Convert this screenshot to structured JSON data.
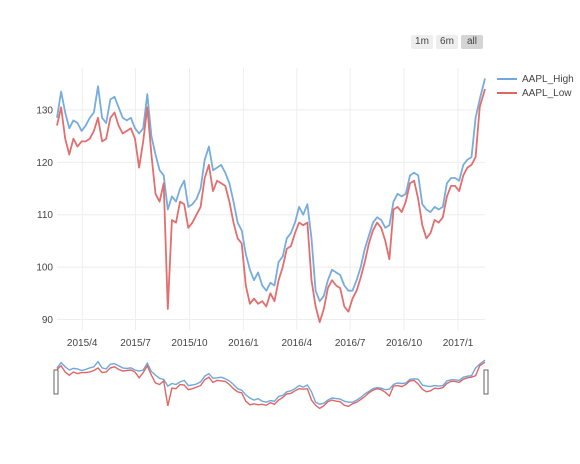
{
  "range_selector": {
    "buttons": [
      {
        "label": "1m"
      },
      {
        "label": "6m"
      },
      {
        "label": "all",
        "active": true
      }
    ]
  },
  "chart_data": {
    "type": "line",
    "title": "",
    "xlabel": "",
    "ylabel": "",
    "x_tick_labels": [
      "2015/4",
      "2015/7",
      "2015/10",
      "2016/1",
      "2016/4",
      "2016/7",
      "2016/10",
      "2017/1"
    ],
    "x_range": [
      "2015-02-17",
      "2017-02-16"
    ],
    "y_ticks": [
      90,
      100,
      110,
      120,
      130
    ],
    "ylim": [
      88,
      138
    ],
    "grid": true,
    "legend_position": "top-right",
    "rangeslider": true,
    "series": [
      {
        "name": "AAPL_High",
        "color": "#6fa8dc",
        "points": [
          [
            "2015-02-17",
            128.5
          ],
          [
            "2015-02-24",
            133.5
          ],
          [
            "2015-03-03",
            129.5
          ],
          [
            "2015-03-10",
            126.5
          ],
          [
            "2015-03-17",
            128.0
          ],
          [
            "2015-03-24",
            127.5
          ],
          [
            "2015-03-31",
            126.0
          ],
          [
            "2015-04-07",
            127.0
          ],
          [
            "2015-04-14",
            128.5
          ],
          [
            "2015-04-21",
            129.5
          ],
          [
            "2015-04-28",
            134.5
          ],
          [
            "2015-05-05",
            128.5
          ],
          [
            "2015-05-12",
            127.5
          ],
          [
            "2015-05-19",
            132.0
          ],
          [
            "2015-05-26",
            132.5
          ],
          [
            "2015-06-02",
            130.5
          ],
          [
            "2015-06-09",
            128.5
          ],
          [
            "2015-06-16",
            128.0
          ],
          [
            "2015-06-23",
            128.5
          ],
          [
            "2015-06-30",
            126.5
          ],
          [
            "2015-07-07",
            125.5
          ],
          [
            "2015-07-14",
            126.5
          ],
          [
            "2015-07-21",
            133.0
          ],
          [
            "2015-07-28",
            125.0
          ],
          [
            "2015-08-04",
            121.5
          ],
          [
            "2015-08-11",
            118.5
          ],
          [
            "2015-08-18",
            117.5
          ],
          [
            "2015-08-25",
            111.0
          ],
          [
            "2015-09-01",
            113.5
          ],
          [
            "2015-09-08",
            112.5
          ],
          [
            "2015-09-15",
            115.0
          ],
          [
            "2015-09-22",
            116.5
          ],
          [
            "2015-09-29",
            111.5
          ],
          [
            "2015-10-06",
            112.0
          ],
          [
            "2015-10-13",
            113.0
          ],
          [
            "2015-10-20",
            115.0
          ],
          [
            "2015-10-27",
            120.5
          ],
          [
            "2015-11-03",
            123.0
          ],
          [
            "2015-11-10",
            118.5
          ],
          [
            "2015-11-17",
            119.0
          ],
          [
            "2015-11-24",
            119.5
          ],
          [
            "2015-12-01",
            118.0
          ],
          [
            "2015-12-08",
            116.0
          ],
          [
            "2015-12-15",
            112.5
          ],
          [
            "2015-12-22",
            108.5
          ],
          [
            "2015-12-29",
            107.0
          ],
          [
            "2016-01-05",
            102.5
          ],
          [
            "2016-01-12",
            99.5
          ],
          [
            "2016-01-19",
            97.5
          ],
          [
            "2016-01-26",
            99.0
          ],
          [
            "2016-02-02",
            96.5
          ],
          [
            "2016-02-09",
            95.5
          ],
          [
            "2016-02-16",
            97.0
          ],
          [
            "2016-02-23",
            96.5
          ],
          [
            "2016-03-01",
            101.0
          ],
          [
            "2016-03-08",
            102.0
          ],
          [
            "2016-03-15",
            105.5
          ],
          [
            "2016-03-22",
            106.5
          ],
          [
            "2016-03-29",
            108.5
          ],
          [
            "2016-04-05",
            111.5
          ],
          [
            "2016-04-12",
            110.0
          ],
          [
            "2016-04-19",
            112.0
          ],
          [
            "2016-04-26",
            105.5
          ],
          [
            "2016-05-03",
            95.5
          ],
          [
            "2016-05-10",
            93.5
          ],
          [
            "2016-05-17",
            94.5
          ],
          [
            "2016-05-24",
            97.5
          ],
          [
            "2016-05-31",
            99.5
          ],
          [
            "2016-06-07",
            99.0
          ],
          [
            "2016-06-14",
            98.5
          ],
          [
            "2016-06-21",
            96.5
          ],
          [
            "2016-06-28",
            95.5
          ],
          [
            "2016-07-05",
            95.5
          ],
          [
            "2016-07-12",
            97.5
          ],
          [
            "2016-07-19",
            100.0
          ],
          [
            "2016-07-26",
            103.5
          ],
          [
            "2016-08-02",
            106.0
          ],
          [
            "2016-08-09",
            108.5
          ],
          [
            "2016-08-16",
            109.5
          ],
          [
            "2016-08-23",
            109.0
          ],
          [
            "2016-08-30",
            107.5
          ],
          [
            "2016-09-06",
            108.0
          ],
          [
            "2016-09-13",
            112.5
          ],
          [
            "2016-09-20",
            114.0
          ],
          [
            "2016-09-27",
            113.5
          ],
          [
            "2016-10-04",
            114.0
          ],
          [
            "2016-10-11",
            117.5
          ],
          [
            "2016-10-18",
            118.0
          ],
          [
            "2016-10-25",
            117.5
          ],
          [
            "2016-11-01",
            112.0
          ],
          [
            "2016-11-08",
            111.0
          ],
          [
            "2016-11-15",
            110.5
          ],
          [
            "2016-11-22",
            111.5
          ],
          [
            "2016-11-29",
            111.0
          ],
          [
            "2016-12-06",
            111.5
          ],
          [
            "2016-12-13",
            116.0
          ],
          [
            "2016-12-20",
            117.0
          ],
          [
            "2016-12-27",
            117.0
          ],
          [
            "2017-01-03",
            116.5
          ],
          [
            "2017-01-10",
            119.5
          ],
          [
            "2017-01-17",
            120.5
          ],
          [
            "2017-01-24",
            121.0
          ],
          [
            "2017-01-31",
            128.5
          ],
          [
            "2017-02-07",
            132.0
          ],
          [
            "2017-02-16",
            136.0
          ]
        ]
      },
      {
        "name": "AAPL_Low",
        "color": "#e06666",
        "points": [
          [
            "2015-02-17",
            127.0
          ],
          [
            "2015-02-24",
            130.5
          ],
          [
            "2015-03-03",
            124.5
          ],
          [
            "2015-03-10",
            121.5
          ],
          [
            "2015-03-17",
            124.5
          ],
          [
            "2015-03-24",
            123.0
          ],
          [
            "2015-03-31",
            124.0
          ],
          [
            "2015-04-07",
            124.0
          ],
          [
            "2015-04-14",
            124.5
          ],
          [
            "2015-04-21",
            126.0
          ],
          [
            "2015-04-28",
            128.5
          ],
          [
            "2015-05-05",
            124.0
          ],
          [
            "2015-05-12",
            124.5
          ],
          [
            "2015-05-19",
            128.5
          ],
          [
            "2015-05-26",
            129.5
          ],
          [
            "2015-06-02",
            127.0
          ],
          [
            "2015-06-09",
            125.5
          ],
          [
            "2015-06-16",
            126.0
          ],
          [
            "2015-06-23",
            126.5
          ],
          [
            "2015-06-30",
            124.5
          ],
          [
            "2015-07-07",
            119.0
          ],
          [
            "2015-07-14",
            124.0
          ],
          [
            "2015-07-21",
            130.5
          ],
          [
            "2015-07-28",
            121.5
          ],
          [
            "2015-08-04",
            114.0
          ],
          [
            "2015-08-11",
            112.5
          ],
          [
            "2015-08-18",
            116.0
          ],
          [
            "2015-08-25",
            92.0
          ],
          [
            "2015-09-01",
            109.0
          ],
          [
            "2015-09-08",
            108.5
          ],
          [
            "2015-09-15",
            112.5
          ],
          [
            "2015-09-22",
            112.0
          ],
          [
            "2015-09-29",
            107.5
          ],
          [
            "2015-10-06",
            108.5
          ],
          [
            "2015-10-13",
            110.0
          ],
          [
            "2015-10-20",
            111.5
          ],
          [
            "2015-10-27",
            117.0
          ],
          [
            "2015-11-03",
            119.5
          ],
          [
            "2015-11-10",
            114.5
          ],
          [
            "2015-11-17",
            116.5
          ],
          [
            "2015-11-24",
            116.0
          ],
          [
            "2015-12-01",
            115.5
          ],
          [
            "2015-12-08",
            112.5
          ],
          [
            "2015-12-15",
            108.5
          ],
          [
            "2015-12-22",
            105.5
          ],
          [
            "2015-12-29",
            104.5
          ],
          [
            "2016-01-05",
            96.5
          ],
          [
            "2016-01-12",
            93.0
          ],
          [
            "2016-01-19",
            94.0
          ],
          [
            "2016-01-26",
            93.0
          ],
          [
            "2016-02-02",
            93.5
          ],
          [
            "2016-02-09",
            92.5
          ],
          [
            "2016-02-16",
            95.0
          ],
          [
            "2016-02-23",
            93.5
          ],
          [
            "2016-03-01",
            97.5
          ],
          [
            "2016-03-08",
            100.0
          ],
          [
            "2016-03-15",
            103.5
          ],
          [
            "2016-03-22",
            104.0
          ],
          [
            "2016-03-29",
            106.5
          ],
          [
            "2016-04-05",
            108.5
          ],
          [
            "2016-04-12",
            108.0
          ],
          [
            "2016-04-19",
            108.5
          ],
          [
            "2016-04-26",
            97.5
          ],
          [
            "2016-05-03",
            92.5
          ],
          [
            "2016-05-10",
            89.5
          ],
          [
            "2016-05-17",
            92.0
          ],
          [
            "2016-05-24",
            96.0
          ],
          [
            "2016-05-31",
            97.5
          ],
          [
            "2016-06-07",
            96.5
          ],
          [
            "2016-06-14",
            96.0
          ],
          [
            "2016-06-21",
            92.5
          ],
          [
            "2016-06-28",
            91.5
          ],
          [
            "2016-07-05",
            94.0
          ],
          [
            "2016-07-12",
            95.5
          ],
          [
            "2016-07-19",
            98.0
          ],
          [
            "2016-07-26",
            101.0
          ],
          [
            "2016-08-02",
            104.5
          ],
          [
            "2016-08-09",
            107.0
          ],
          [
            "2016-08-16",
            108.5
          ],
          [
            "2016-08-23",
            107.5
          ],
          [
            "2016-08-30",
            105.0
          ],
          [
            "2016-09-06",
            101.5
          ],
          [
            "2016-09-13",
            111.0
          ],
          [
            "2016-09-20",
            111.5
          ],
          [
            "2016-09-27",
            110.5
          ],
          [
            "2016-10-04",
            112.5
          ],
          [
            "2016-10-11",
            116.0
          ],
          [
            "2016-10-18",
            116.5
          ],
          [
            "2016-10-25",
            113.0
          ],
          [
            "2016-11-01",
            108.0
          ],
          [
            "2016-11-08",
            105.5
          ],
          [
            "2016-11-15",
            106.5
          ],
          [
            "2016-11-22",
            109.0
          ],
          [
            "2016-11-29",
            108.5
          ],
          [
            "2016-12-06",
            109.5
          ],
          [
            "2016-12-13",
            113.5
          ],
          [
            "2016-12-20",
            115.5
          ],
          [
            "2016-12-27",
            115.5
          ],
          [
            "2017-01-03",
            114.5
          ],
          [
            "2017-01-10",
            117.5
          ],
          [
            "2017-01-17",
            119.0
          ],
          [
            "2017-01-24",
            119.5
          ],
          [
            "2017-01-31",
            121.0
          ],
          [
            "2017-02-07",
            130.5
          ],
          [
            "2017-02-16",
            134.0
          ]
        ]
      }
    ]
  }
}
